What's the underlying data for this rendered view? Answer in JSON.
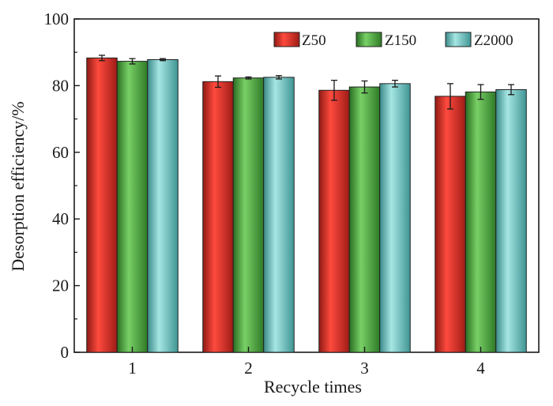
{
  "chart_data": {
    "type": "bar",
    "categories": [
      "1",
      "2",
      "3",
      "4"
    ],
    "xlabel": "Recycle times",
    "ylabel": "Desorption efficiency/%",
    "ylim": [
      0,
      100
    ],
    "yticks": [
      0,
      20,
      40,
      60,
      80,
      100
    ],
    "grid": false,
    "legend_position": "top-right",
    "series": [
      {
        "name": "Z50",
        "color": "#d8322c",
        "values": [
          88.3,
          81.2,
          78.6,
          76.8
        ],
        "errors": [
          0.8,
          1.7,
          3.0,
          3.8
        ]
      },
      {
        "name": "Z150",
        "color": "#4fb044",
        "values": [
          87.3,
          82.3,
          79.6,
          78.1
        ],
        "errors": [
          0.8,
          0.3,
          1.8,
          2.2
        ]
      },
      {
        "name": "Z2000",
        "color": "#63c4c2",
        "values": [
          87.8,
          82.5,
          80.6,
          78.8
        ],
        "errors": [
          0.3,
          0.5,
          1.0,
          1.5
        ]
      }
    ]
  }
}
